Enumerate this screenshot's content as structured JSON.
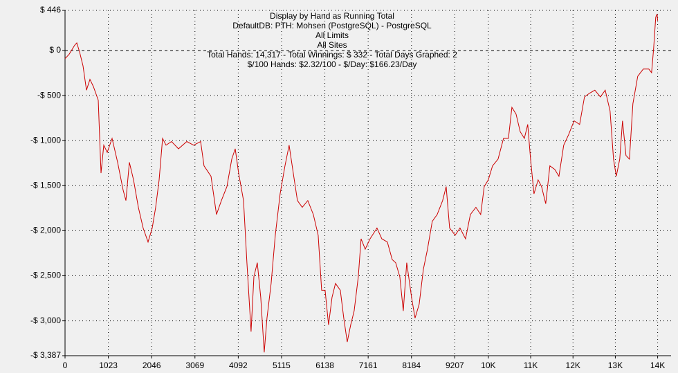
{
  "chart_data": {
    "type": "line",
    "title_lines": [
      "Display by Hand as Running Total",
      "DefaultDB: PTH: Mohsen (PostgreSQL) - PostgreSQL",
      "All Limits",
      "All Sites",
      "Total Hands: 14,317 - Total Winnings: $ 332 - Total Days Graphed: 2",
      "$/100 Hands: $2.32/100 - $/Day: $166.23/Day"
    ],
    "x": [
      0,
      98,
      229,
      278,
      343,
      425,
      507,
      588,
      670,
      784,
      850,
      915,
      997,
      1111,
      1242,
      1373,
      1438,
      1520,
      1618,
      1732,
      1846,
      1961,
      2059,
      2141,
      2222,
      2304,
      2386,
      2516,
      2680,
      2876,
      3039,
      3203,
      3284,
      3448,
      3578,
      3693,
      3824,
      3938,
      4020,
      4101,
      4216,
      4297,
      4395,
      4461,
      4542,
      4624,
      4706,
      4771,
      4869,
      4967,
      5082,
      5196,
      5294,
      5392,
      5490,
      5605,
      5735,
      5866,
      5980,
      6062,
      6144,
      6225,
      6307,
      6389,
      6503,
      6585,
      6667,
      6748,
      6830,
      6928,
      6993,
      7092,
      7206,
      7369,
      7484,
      7614,
      7729,
      7810,
      7908,
      7990,
      8072,
      8186,
      8268,
      8366,
      8464,
      8562,
      8676,
      8791,
      8921,
      9003,
      9085,
      9216,
      9330,
      9461,
      9575,
      9706,
      9820,
      9902,
      9999,
      10098,
      10229,
      10359,
      10474,
      10556,
      10654,
      10752,
      10850,
      10931,
      10997,
      11078,
      11176,
      11258,
      11356,
      11454,
      11569,
      11667,
      11781,
      11895,
      12026,
      12157,
      12271,
      12386,
      12516,
      12647,
      12761,
      12876,
      12958,
      13023,
      13105,
      13170,
      13252,
      13333,
      13415,
      13529,
      13660,
      13791,
      13856,
      13905,
      13954,
      13987,
      14000
    ],
    "series": [
      {
        "color": "#cc0000",
        "values": [
          -90,
          -40,
          60,
          85,
          -15,
          -170,
          -440,
          -320,
          -400,
          -550,
          -1360,
          -1050,
          -1130,
          -975,
          -1240,
          -1550,
          -1665,
          -1240,
          -1435,
          -1740,
          -1970,
          -2125,
          -1970,
          -1740,
          -1435,
          -975,
          -1050,
          -1010,
          -1090,
          -1010,
          -1050,
          -1010,
          -1280,
          -1395,
          -1820,
          -1665,
          -1510,
          -1205,
          -1090,
          -1360,
          -1665,
          -2355,
          -3120,
          -2510,
          -2355,
          -2740,
          -3350,
          -2970,
          -2585,
          -2050,
          -1590,
          -1280,
          -1050,
          -1360,
          -1665,
          -1740,
          -1665,
          -1820,
          -2050,
          -2660,
          -2660,
          -3045,
          -2740,
          -2585,
          -2660,
          -2970,
          -3235,
          -3045,
          -2890,
          -2510,
          -2090,
          -2205,
          -2090,
          -1970,
          -2090,
          -2125,
          -2320,
          -2355,
          -2510,
          -2890,
          -2355,
          -2740,
          -2970,
          -2815,
          -2430,
          -2205,
          -1895,
          -1820,
          -1665,
          -1510,
          -1970,
          -2050,
          -1970,
          -2090,
          -1820,
          -1740,
          -1820,
          -1510,
          -1435,
          -1280,
          -1205,
          -975,
          -975,
          -630,
          -705,
          -900,
          -975,
          -820,
          -1205,
          -1590,
          -1435,
          -1510,
          -1700,
          -1280,
          -1320,
          -1395,
          -1050,
          -935,
          -780,
          -820,
          -515,
          -475,
          -440,
          -515,
          -440,
          -670,
          -1205,
          -1395,
          -1205,
          -780,
          -1165,
          -1205,
          -590,
          -285,
          -205,
          -205,
          -245,
          25,
          370,
          405,
          332
        ]
      }
    ],
    "xlim": [
      0,
      14317
    ],
    "ylim": [
      -3387,
      446
    ],
    "xticks": [
      0,
      1023,
      2046,
      3069,
      4092,
      5115,
      6138,
      7161,
      8184,
      9207,
      {
        "value": 10000,
        "label": "10K"
      },
      {
        "value": 11000,
        "label": "11K"
      },
      {
        "value": 12000,
        "label": "12K"
      },
      {
        "value": 13000,
        "label": "13K"
      },
      {
        "value": 14000,
        "label": "14K"
      }
    ],
    "yticks": [
      {
        "value": 446,
        "label": "$ 446"
      },
      {
        "value": 0,
        "label": "$ 0"
      },
      {
        "value": -500,
        "label": "-$ 500"
      },
      {
        "value": -1000,
        "label": "-$ 1,000"
      },
      {
        "value": -1500,
        "label": "-$ 1,500"
      },
      {
        "value": -2000,
        "label": "-$ 2,000"
      },
      {
        "value": -2500,
        "label": "-$ 2,500"
      },
      {
        "value": -3000,
        "label": "-$ 3,000"
      },
      {
        "value": -3387,
        "label": "-$ 3,387"
      }
    ],
    "grid": true
  }
}
